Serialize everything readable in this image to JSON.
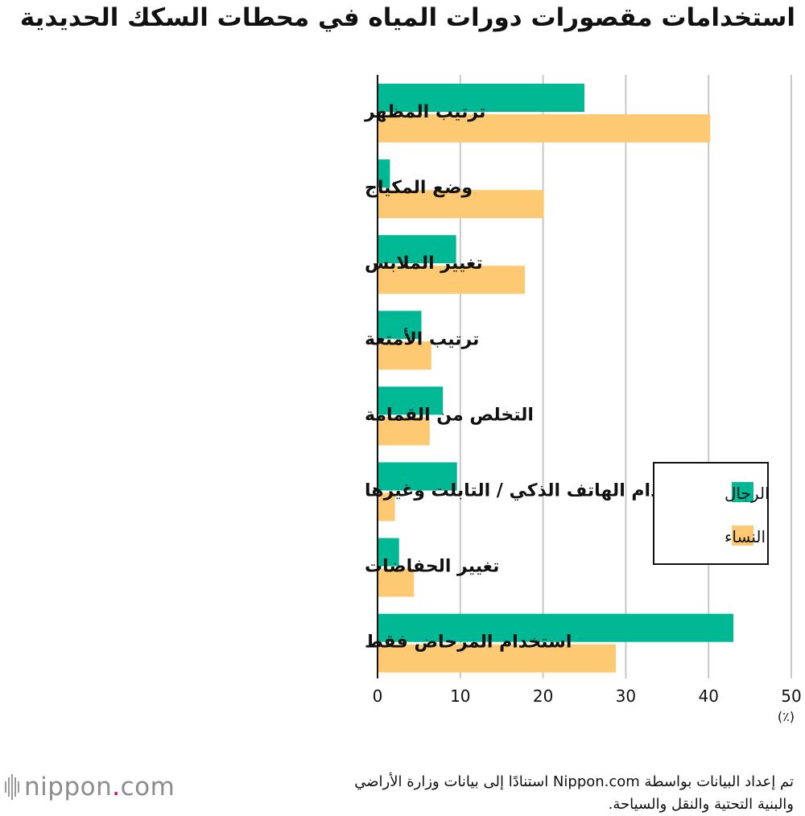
{
  "title": "استخدامات مقصورات دورات المياه في محطات السكك الحديدية",
  "source_line1": "تم إعداد البيانات بواسطة Nippon.com استنادًا إلى بيانات وزارة الأراضي",
  "source_line2": "والبنية التحتية والنقل والسياحة.",
  "logo": {
    "name": "nippon",
    "dot": ".",
    "tld": "com"
  },
  "colors": {
    "men": "#00b894",
    "women": "#fdc972",
    "grid": "#c8c8c8",
    "axis": "#111111"
  },
  "chart_data": {
    "type": "bar",
    "orientation": "horizontal",
    "title": "استخدامات مقصورات دورات المياه في محطات السكك الحديدية",
    "categories": [
      "ترتيب المظهر",
      "وضع المكياج",
      "تغيير الملابس",
      "ترتيب الأمتعة",
      "التخلص من القمامة",
      "استخدام الهاتف الذكي / التابلت وغيرها",
      "تغيير الحفاضات",
      "استخدام المرحاض فقط"
    ],
    "series": [
      {
        "name": "الرجال",
        "values": [
          25.0,
          1.5,
          9.5,
          5.3,
          7.9,
          9.6,
          2.6,
          43.0
        ]
      },
      {
        "name": "النساء",
        "values": [
          40.2,
          20.1,
          17.8,
          6.5,
          6.3,
          2.1,
          4.4,
          28.8
        ]
      }
    ],
    "xlim": [
      0,
      50
    ],
    "xticks": [
      0,
      10,
      20,
      30,
      40,
      50
    ],
    "unit_label": "(٪)",
    "grid": true,
    "legend_position": "right"
  }
}
